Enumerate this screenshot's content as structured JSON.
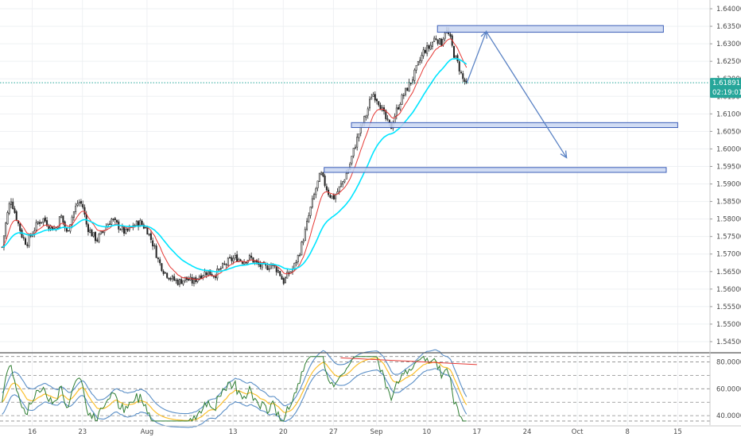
{
  "chart_data": {
    "type": "candlestick",
    "price_axis": {
      "ylim": [
        1.5425,
        1.6425
      ],
      "ticks": [
        "1.64000",
        "1.63500",
        "1.63000",
        "1.62500",
        "1.62000",
        "1.61500",
        "1.61000",
        "1.60500",
        "1.60000",
        "1.59500",
        "1.59000",
        "1.58500",
        "1.58000",
        "1.57500",
        "1.57000",
        "1.56500",
        "1.56000",
        "1.55500",
        "1.55000",
        "1.54500"
      ]
    },
    "current_price": {
      "value": 1.6189,
      "label": "1.61891",
      "countdown": "02:19:01"
    },
    "time_axis": {
      "labels": [
        {
          "text": "16",
          "day": 0
        },
        {
          "text": "23",
          "day": 7
        },
        {
          "text": "Aug",
          "day": 16
        },
        {
          "text": "13",
          "day": 28
        },
        {
          "text": "20",
          "day": 35
        },
        {
          "text": "27",
          "day": 42
        },
        {
          "text": "Sep",
          "day": 48
        },
        {
          "text": "10",
          "day": 55
        },
        {
          "text": "17",
          "day": 62
        },
        {
          "text": "24",
          "day": 69
        },
        {
          "text": "Oct",
          "day": 76
        },
        {
          "text": "8",
          "day": 83
        },
        {
          "text": "15",
          "day": 90
        }
      ],
      "xlim": [
        -4.5,
        94.5
      ]
    },
    "close_path": [
      [
        -4.2,
        1.572
      ],
      [
        -3.6,
        1.58
      ],
      [
        -3.0,
        1.586
      ],
      [
        -2.6,
        1.583
      ],
      [
        -2.0,
        1.579
      ],
      [
        -1.4,
        1.575
      ],
      [
        -0.8,
        1.573
      ],
      [
        0.0,
        1.576
      ],
      [
        0.8,
        1.579
      ],
      [
        1.6,
        1.58
      ],
      [
        2.4,
        1.578
      ],
      [
        3.2,
        1.577
      ],
      [
        4.0,
        1.581
      ],
      [
        4.8,
        1.576
      ],
      [
        5.6,
        1.581
      ],
      [
        6.4,
        1.585
      ],
      [
        7.0,
        1.584
      ],
      [
        7.6,
        1.578
      ],
      [
        8.2,
        1.576
      ],
      [
        9.0,
        1.574
      ],
      [
        10.0,
        1.577
      ],
      [
        11.0,
        1.58
      ],
      [
        12.0,
        1.578
      ],
      [
        13.0,
        1.576
      ],
      [
        14.0,
        1.578
      ],
      [
        15.0,
        1.579
      ],
      [
        16.0,
        1.577
      ],
      [
        17.0,
        1.572
      ],
      [
        17.6,
        1.568
      ],
      [
        18.4,
        1.565
      ],
      [
        19.4,
        1.563
      ],
      [
        20.4,
        1.562
      ],
      [
        21.4,
        1.563
      ],
      [
        22.4,
        1.562
      ],
      [
        23.4,
        1.564
      ],
      [
        24.4,
        1.565
      ],
      [
        25.4,
        1.564
      ],
      [
        26.4,
        1.566
      ],
      [
        27.4,
        1.568
      ],
      [
        28.4,
        1.569
      ],
      [
        29.4,
        1.568
      ],
      [
        30.4,
        1.569
      ],
      [
        31.4,
        1.567
      ],
      [
        32.4,
        1.566
      ],
      [
        33.4,
        1.567
      ],
      [
        34.4,
        1.565
      ],
      [
        35.0,
        1.562
      ],
      [
        35.6,
        1.564
      ],
      [
        36.4,
        1.566
      ],
      [
        37.2,
        1.57
      ],
      [
        38.0,
        1.576
      ],
      [
        38.8,
        1.583
      ],
      [
        39.6,
        1.589
      ],
      [
        40.2,
        1.593
      ],
      [
        40.8,
        1.59
      ],
      [
        41.4,
        1.587
      ],
      [
        42.0,
        1.586
      ],
      [
        42.6,
        1.588
      ],
      [
        43.4,
        1.591
      ],
      [
        44.2,
        1.595
      ],
      [
        45.0,
        1.601
      ],
      [
        45.8,
        1.606
      ],
      [
        46.6,
        1.61
      ],
      [
        47.4,
        1.616
      ],
      [
        48.2,
        1.614
      ],
      [
        48.8,
        1.611
      ],
      [
        49.4,
        1.608
      ],
      [
        50.0,
        1.606
      ],
      [
        50.6,
        1.61
      ],
      [
        51.4,
        1.614
      ],
      [
        52.2,
        1.617
      ],
      [
        53.0,
        1.62
      ],
      [
        53.8,
        1.624
      ],
      [
        54.6,
        1.628
      ],
      [
        55.4,
        1.629
      ],
      [
        56.2,
        1.632
      ],
      [
        57.0,
        1.63
      ],
      [
        57.6,
        1.634
      ],
      [
        58.2,
        1.632
      ],
      [
        58.8,
        1.627
      ],
      [
        59.4,
        1.624
      ],
      [
        60.0,
        1.62
      ],
      [
        60.6,
        1.6185
      ]
    ],
    "zones": [
      {
        "name": "resistance-zone",
        "x": [
          56.5,
          88.0
        ],
        "y": [
          1.6333,
          1.6352
        ]
      },
      {
        "name": "support-zone-upper",
        "x": [
          44.5,
          90.0
        ],
        "y": [
          1.6061,
          1.6075
        ]
      },
      {
        "name": "support-zone-lower",
        "x": [
          40.7,
          88.4
        ],
        "y": [
          1.5933,
          1.5947
        ]
      }
    ],
    "projection": [
      [
        60.6,
        1.6189
      ],
      [
        63.3,
        1.6335
      ],
      [
        74.5,
        1.5975
      ]
    ],
    "oscillator": {
      "ticks": [
        "80.0000",
        "60.0000",
        "40.0000"
      ],
      "ylim": [
        33,
        85
      ],
      "dashed_levels": [
        84,
        80,
        70,
        60,
        50,
        40,
        36
      ]
    },
    "colors": {
      "bull": "#26a69a",
      "candle": "#222222",
      "ema_fast": "#e53935",
      "ema_slow": "#00e5ff",
      "zone_fill": "#c9d6f1",
      "zone_stroke": "#3d5fb8",
      "arrow": "#5a82c4",
      "current_price": "#26a69a",
      "osc_main": "#2e7d32",
      "osc_signal": "#fbc02d",
      "osc_band": "#5b8fc7",
      "osc_trend": "#e53935"
    }
  }
}
